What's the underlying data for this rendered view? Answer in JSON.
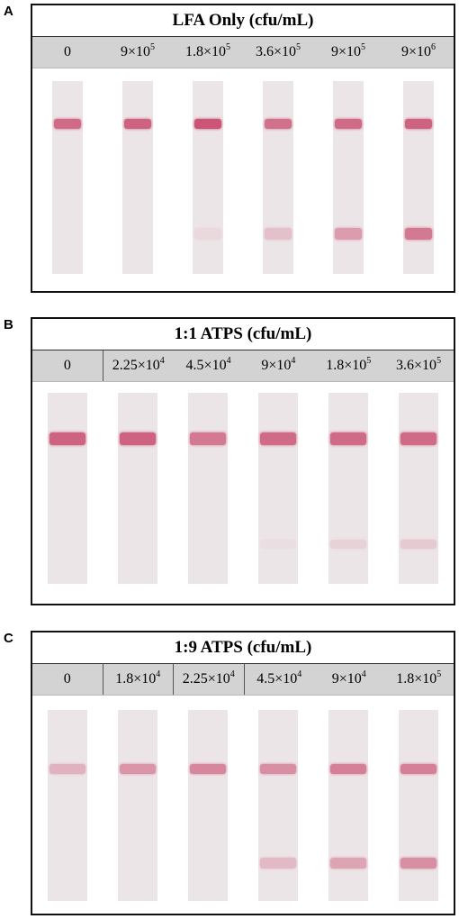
{
  "panels": [
    {
      "letter": "A",
      "title": "LFA Only (cfu/mL)",
      "concentrations": [
        {
          "base": "0",
          "exp": ""
        },
        {
          "base": "9×10",
          "exp": "5"
        },
        {
          "base": "1.8×10",
          "exp": "5"
        },
        {
          "base": "3.6×10",
          "exp": "5"
        },
        {
          "base": "9×10",
          "exp": "5"
        },
        {
          "base": "9×10",
          "exp": "6"
        }
      ],
      "band_color": "#c8466a",
      "strips": [
        {
          "control": 0.85,
          "test": 0.0
        },
        {
          "control": 0.9,
          "test": 0.0
        },
        {
          "control": 1.0,
          "test": 0.08
        },
        {
          "control": 0.8,
          "test": 0.25
        },
        {
          "control": 0.85,
          "test": 0.5
        },
        {
          "control": 0.9,
          "test": 0.75
        }
      ]
    },
    {
      "letter": "B",
      "title": "1:1 ATPS (cfu/mL)",
      "concentrations": [
        {
          "base": "0",
          "exp": ""
        },
        {
          "base": "2.25×10",
          "exp": "4"
        },
        {
          "base": "4.5×10",
          "exp": "4"
        },
        {
          "base": "9×10",
          "exp": "4"
        },
        {
          "base": "1.8×10",
          "exp": "5"
        },
        {
          "base": "3.6×10",
          "exp": "5"
        }
      ],
      "band_color": "#c8466a",
      "strips": [
        {
          "control": 0.9,
          "test": 0.0
        },
        {
          "control": 0.9,
          "test": 0.0
        },
        {
          "control": 0.75,
          "test": 0.0
        },
        {
          "control": 0.85,
          "test": 0.04
        },
        {
          "control": 0.85,
          "test": 0.12
        },
        {
          "control": 0.85,
          "test": 0.18
        }
      ]
    },
    {
      "letter": "C",
      "title": "1:9 ATPS (cfu/mL)",
      "concentrations": [
        {
          "base": "0",
          "exp": ""
        },
        {
          "base": "1.8×10",
          "exp": "4"
        },
        {
          "base": "2.25×10",
          "exp": "4"
        },
        {
          "base": "4.5×10",
          "exp": "4"
        },
        {
          "base": "9×10",
          "exp": "4"
        },
        {
          "base": "1.8×10",
          "exp": "5"
        }
      ],
      "band_color": "#c8466a",
      "strips": [
        {
          "control": 0.35,
          "test": 0.0
        },
        {
          "control": 0.55,
          "test": 0.0
        },
        {
          "control": 0.65,
          "test": 0.0
        },
        {
          "control": 0.6,
          "test": 0.3
        },
        {
          "control": 0.7,
          "test": 0.45
        },
        {
          "control": 0.7,
          "test": 0.6
        }
      ]
    }
  ]
}
